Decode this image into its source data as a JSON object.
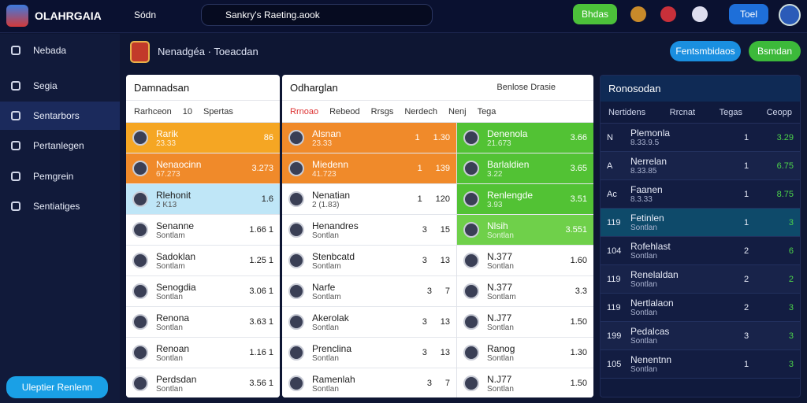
{
  "topbar": {
    "brand": "OLAHRGAIA",
    "nav": "Sódn",
    "search": "Sankry's Raeting.aook",
    "btn_green": "Bhdas",
    "btn_blue": "Toel"
  },
  "sidebar": {
    "header": "Nebada",
    "items": [
      "Segia",
      "Sentarbors",
      "Pertanlegen",
      "Pemgrein",
      "Sentiatiges"
    ],
    "cta": "Uleptier Renlenn"
  },
  "page": {
    "title": "Nenadgéa · Toeacdan",
    "btn_primary": "Fentsmbidaos",
    "btn_secondary": "Bsmdan"
  },
  "panel1": {
    "title": "Damnadsan",
    "tabs": [
      "Rarhceon",
      "10",
      "Spertas"
    ],
    "rows": [
      {
        "name": "Rarik",
        "sub": "23.33",
        "value": "86"
      },
      {
        "name": "Nenaocinn",
        "sub": "67.273",
        "value": "3.273"
      },
      {
        "name": "Rlehonit",
        "sub": "2 K13",
        "value": "1.6"
      },
      {
        "name": "Senanne",
        "sub": "Sontlam",
        "value": "1.66 1"
      },
      {
        "name": "Sadoklan",
        "sub": "Sontlam",
        "value": "1.25 1"
      },
      {
        "name": "Senogdia",
        "sub": "Sontlan",
        "value": "3.06 1"
      },
      {
        "name": "Renona",
        "sub": "Sontlan",
        "value": "3.63 1"
      },
      {
        "name": "Renoan",
        "sub": "Sontlan",
        "value": "1.16 1"
      },
      {
        "name": "Perdsdan",
        "sub": "Sontlan",
        "value": "3.56 1"
      }
    ]
  },
  "panel2": {
    "title": "Odharglan",
    "subtitle": "Benlose Drasie",
    "tabs": [
      "Rrnoao",
      "Rebeod",
      "Rrsgs",
      "Nerdech",
      "Nenj",
      "Tega"
    ],
    "left": [
      {
        "name": "Alsnan",
        "sub": "23.33",
        "n": "1",
        "value": "1.30"
      },
      {
        "name": "Miedenn",
        "sub": "41.723",
        "n": "1",
        "value": "139"
      },
      {
        "name": "Nenatian",
        "sub": "2 (1.83)",
        "n": "1",
        "value": "120"
      },
      {
        "name": "Henandres",
        "sub": "Sontlan",
        "n": "3",
        "value": "15"
      },
      {
        "name": "Stenbcatd",
        "sub": "Sontlam",
        "n": "3",
        "value": "13"
      },
      {
        "name": "Narfe",
        "sub": "Sontlam",
        "n": "3",
        "value": "7"
      },
      {
        "name": "Akerolak",
        "sub": "Sontlan",
        "n": "3",
        "value": "13"
      },
      {
        "name": "Prenclina",
        "sub": "Sontlan",
        "n": "3",
        "value": "13"
      },
      {
        "name": "Ramenlah",
        "sub": "Sontlan",
        "n": "3",
        "value": "7"
      }
    ],
    "right": [
      {
        "name": "Denenola",
        "sub": "21.673",
        "value": "3.66"
      },
      {
        "name": "Barlaldien",
        "sub": "3.22",
        "value": "3.65"
      },
      {
        "name": "Renlengde",
        "sub": "3.93",
        "value": "3.51"
      },
      {
        "name": "Nlsih",
        "sub": "Sontlan",
        "value": "3.551"
      },
      {
        "name": "N.377",
        "sub": "Sontlan",
        "value": "1.60"
      },
      {
        "name": "N.377",
        "sub": "Sontlam",
        "value": "3.3"
      },
      {
        "name": "N.J77",
        "sub": "Sontlan",
        "value": "1.50"
      },
      {
        "name": "Ranog",
        "sub": "Sontlan",
        "value": "1.30"
      },
      {
        "name": "N.J77",
        "sub": "Sontlan",
        "value": "1.50"
      }
    ]
  },
  "panel3": {
    "title": "Ronosodan",
    "columns": [
      "Nertidens",
      "Rrcnat",
      "Tegas",
      "Ceopp"
    ],
    "rows": [
      {
        "rank": "N",
        "name": "Plemonla",
        "sub": "8.33.9.5",
        "n": "1",
        "value": "3.29"
      },
      {
        "rank": "A",
        "name": "Nerrelan",
        "sub": "8.33.85",
        "n": "1",
        "value": "6.75"
      },
      {
        "rank": "Ac",
        "name": "Faanen",
        "sub": "8.3.33",
        "n": "1",
        "value": "8.75"
      },
      {
        "rank": "119",
        "name": "Fetinlen",
        "sub": "Sontlan",
        "n": "1",
        "value": "3"
      },
      {
        "rank": "104",
        "name": "Rofehlast",
        "sub": "Sontlan",
        "n": "2",
        "value": "6"
      },
      {
        "rank": "119",
        "name": "Renelaldan",
        "sub": "Sontlan",
        "n": "2",
        "value": "2"
      },
      {
        "rank": "119",
        "name": "Nertlalaon",
        "sub": "Sontlan",
        "n": "2",
        "value": "3"
      },
      {
        "rank": "199",
        "name": "Pedalcas",
        "sub": "Sontlan",
        "n": "3",
        "value": "3"
      },
      {
        "rank": "105",
        "name": "Nenentnn",
        "sub": "Sontlan",
        "n": "1",
        "value": "3"
      }
    ]
  }
}
